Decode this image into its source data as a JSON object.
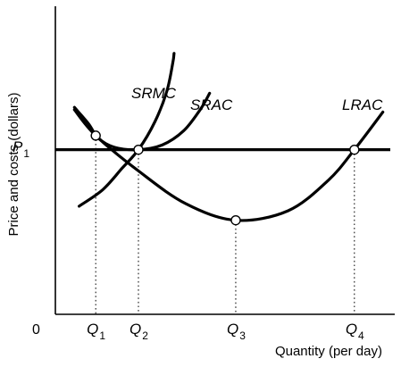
{
  "chart_data": {
    "type": "line",
    "title": "",
    "xlabel": "Quantity (per day)",
    "ylabel": "Price and costs (dollars)",
    "origin_label": "0",
    "grid": false,
    "legend": "none",
    "price_line": {
      "label": "P",
      "subscript": "1",
      "y": 7
    },
    "quantities": [
      {
        "label": "Q",
        "subscript": "1",
        "x": 1.7
      },
      {
        "label": "Q",
        "subscript": "2",
        "x": 3.5
      },
      {
        "label": "Q",
        "subscript": "3",
        "x": 7.6
      },
      {
        "label": "Q",
        "subscript": "4",
        "x": 12.6
      }
    ],
    "series": [
      {
        "name": "SRMC",
        "points": [
          [
            1,
            4.6
          ],
          [
            2,
            5.3
          ],
          [
            2.8,
            6.2
          ],
          [
            3.5,
            7
          ],
          [
            4.2,
            8.2
          ],
          [
            4.7,
            9.5
          ],
          [
            4.95,
            10.7
          ],
          [
            5,
            11.1
          ]
        ]
      },
      {
        "name": "SRAC",
        "points": [
          [
            0.8,
            8.8
          ],
          [
            1.4,
            8.1
          ],
          [
            1.8,
            7.5
          ],
          [
            2.5,
            7.1
          ],
          [
            3.5,
            7
          ],
          [
            4.5,
            7.2
          ],
          [
            5.4,
            7.8
          ],
          [
            6.1,
            8.7
          ],
          [
            6.5,
            9.4
          ]
        ]
      },
      {
        "name": "LRAC",
        "points": [
          [
            0.8,
            8.7
          ],
          [
            1.7,
            7.6
          ],
          [
            3.5,
            6.1
          ],
          [
            5.5,
            4.7
          ],
          [
            7.6,
            4
          ],
          [
            9.8,
            4.4
          ],
          [
            11.5,
            5.7
          ],
          [
            12.6,
            7
          ],
          [
            13.8,
            8.6
          ]
        ]
      }
    ],
    "marked_points": [
      [
        1.7,
        7.6
      ],
      [
        3.5,
        7
      ],
      [
        7.6,
        4
      ],
      [
        12.6,
        7
      ]
    ],
    "xlim": [
      0,
      14.3
    ],
    "ylim": [
      0,
      13.1
    ]
  }
}
